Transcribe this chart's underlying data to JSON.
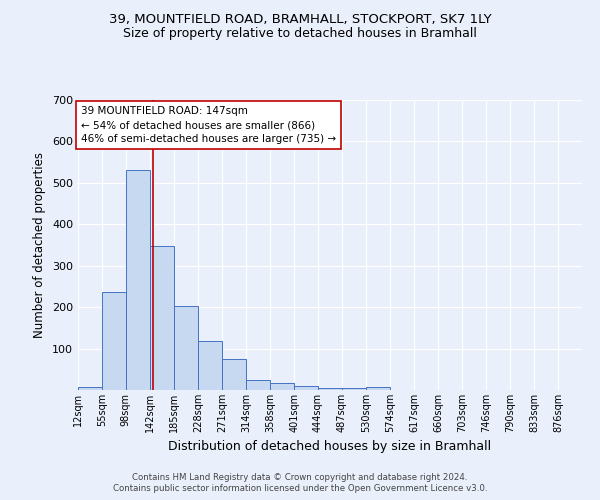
{
  "title1": "39, MOUNTFIELD ROAD, BRAMHALL, STOCKPORT, SK7 1LY",
  "title2": "Size of property relative to detached houses in Bramhall",
  "xlabel": "Distribution of detached houses by size in Bramhall",
  "ylabel": "Number of detached properties",
  "footnote1": "Contains HM Land Registry data © Crown copyright and database right 2024.",
  "footnote2": "Contains public sector information licensed under the Open Government Licence v3.0.",
  "bin_labels": [
    "12sqm",
    "55sqm",
    "98sqm",
    "142sqm",
    "185sqm",
    "228sqm",
    "271sqm",
    "314sqm",
    "358sqm",
    "401sqm",
    "444sqm",
    "487sqm",
    "530sqm",
    "574sqm",
    "617sqm",
    "660sqm",
    "703sqm",
    "746sqm",
    "790sqm",
    "833sqm",
    "876sqm"
  ],
  "bar_values": [
    7,
    237,
    530,
    348,
    202,
    118,
    75,
    25,
    18,
    10,
    6,
    4,
    8,
    0,
    0,
    0,
    0,
    0,
    0,
    0,
    0
  ],
  "bar_color": "#c6d9f0",
  "bar_edge_color": "#4472c4",
  "property_line_x": 147,
  "property_line_color": "#c00000",
  "annotation_text": "39 MOUNTFIELD ROAD: 147sqm\n← 54% of detached houses are smaller (866)\n46% of semi-detached houses are larger (735) →",
  "annotation_box_color": "#ffffff",
  "annotation_box_edge": "#c00000",
  "ylim": [
    0,
    700
  ],
  "yticks": [
    0,
    100,
    200,
    300,
    400,
    500,
    600,
    700
  ],
  "bg_color": "#eaf0fb",
  "grid_color": "#ffffff",
  "bin_edges": [
    12,
    55,
    98,
    142,
    185,
    228,
    271,
    314,
    358,
    401,
    444,
    487,
    530,
    574,
    617,
    660,
    703,
    746,
    790,
    833,
    876,
    919
  ]
}
